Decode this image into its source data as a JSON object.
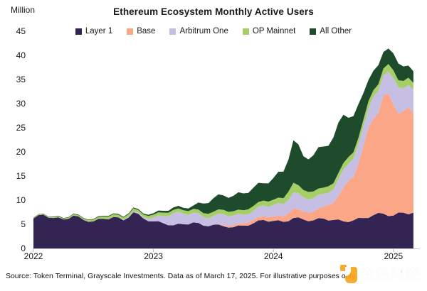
{
  "title": "Ethereum Ecosystem Monthly Active Users",
  "unit_label": "Million",
  "legend": [
    {
      "label": "Layer 1",
      "color": "#342453"
    },
    {
      "label": "Base",
      "color": "#FBA787"
    },
    {
      "label": "Arbitrum One",
      "color": "#C7BFE3"
    },
    {
      "label": "OP Mainnet",
      "color": "#A6CE67"
    },
    {
      "label": "All Other",
      "color": "#1E4B2B"
    }
  ],
  "source_note": "Source: Token Terminal, Grayscale Investments. Data as of March 17, 2025. For illustrative purposes only.",
  "watermark_text": "金色财经",
  "chart_data": {
    "type": "area",
    "stacked": true,
    "title": "Ethereum Ecosystem Monthly Active Users",
    "ylabel": "Million",
    "ylim": [
      0,
      45
    ],
    "y_ticks": [
      0,
      5,
      10,
      15,
      20,
      25,
      30,
      35,
      40,
      45
    ],
    "x_tick_labels": [
      "2022",
      "2023",
      "2024",
      "2025"
    ],
    "grid": false,
    "legend_position": "top",
    "x": [
      "2022-01",
      "2022-02",
      "2022-03",
      "2022-04",
      "2022-05",
      "2022-06",
      "2022-07",
      "2022-08",
      "2022-09",
      "2022-10",
      "2022-11",
      "2022-12",
      "2023-01",
      "2023-02",
      "2023-03",
      "2023-04",
      "2023-05",
      "2023-06",
      "2023-07",
      "2023-08",
      "2023-09",
      "2023-10",
      "2023-11",
      "2023-12",
      "2024-01",
      "2024-02",
      "2024-03",
      "2024-04",
      "2024-05",
      "2024-06",
      "2024-07",
      "2024-08",
      "2024-09",
      "2024-10",
      "2024-11",
      "2024-12",
      "2025-01",
      "2025-02",
      "2025-03"
    ],
    "series": [
      {
        "name": "Layer 1",
        "color": "#342453",
        "values": [
          6.2,
          7.0,
          6.3,
          6.0,
          6.8,
          5.9,
          5.6,
          6.1,
          6.5,
          5.8,
          7.5,
          6.2,
          5.6,
          5.2,
          4.8,
          5.0,
          5.4,
          4.7,
          4.9,
          4.6,
          4.4,
          4.7,
          5.2,
          5.9,
          5.7,
          5.5,
          6.3,
          6.0,
          5.8,
          6.2,
          5.9,
          5.6,
          5.8,
          6.3,
          6.9,
          7.2,
          6.8,
          7.4,
          7.4
        ]
      },
      {
        "name": "Base",
        "color": "#FBA787",
        "values": [
          0,
          0,
          0,
          0,
          0,
          0,
          0,
          0,
          0,
          0,
          0,
          0,
          0,
          0,
          0,
          0,
          0,
          0,
          0,
          0.2,
          0.4,
          0.5,
          0.7,
          0.8,
          0.9,
          1.1,
          2.0,
          1.6,
          1.8,
          2.5,
          3.5,
          7.0,
          9.0,
          15.0,
          20.0,
          24.5,
          23.0,
          21.0,
          20.5
        ]
      },
      {
        "name": "Arbitrum One",
        "color": "#C7BFE3",
        "values": [
          0,
          0,
          0,
          0,
          0,
          0,
          0,
          0,
          0,
          0.1,
          0.2,
          0.3,
          0.8,
          1.5,
          2.5,
          2.2,
          2.0,
          1.8,
          1.8,
          2.3,
          2.0,
          1.8,
          1.9,
          2.2,
          2.4,
          2.6,
          3.3,
          3.0,
          2.8,
          2.6,
          2.8,
          3.8,
          3.8,
          4.0,
          4.5,
          4.2,
          5.5,
          4.8,
          5.0
        ]
      },
      {
        "name": "OP Mainnet",
        "color": "#A6CE67",
        "values": [
          0.15,
          0.15,
          0.2,
          0.2,
          0.3,
          0.3,
          0.4,
          0.5,
          0.6,
          0.5,
          0.6,
          0.5,
          0.6,
          0.7,
          0.7,
          0.7,
          0.8,
          0.8,
          0.9,
          0.9,
          0.9,
          0.9,
          1.0,
          1.0,
          1.1,
          1.2,
          2.0,
          1.5,
          1.4,
          1.3,
          1.3,
          1.3,
          1.3,
          1.4,
          1.4,
          1.4,
          1.6,
          1.5,
          1.4
        ]
      },
      {
        "name": "All Other",
        "color": "#1E4B2B",
        "values": [
          0.05,
          0.05,
          0.1,
          0.1,
          0.1,
          0.1,
          0.1,
          0.15,
          0.15,
          0.15,
          0.2,
          0.2,
          0.3,
          0.4,
          0.5,
          0.5,
          0.7,
          2.0,
          2.8,
          3.0,
          3.2,
          3.5,
          3.8,
          3.6,
          4.5,
          5.5,
          8.8,
          7.0,
          7.5,
          8.5,
          9.5,
          10.0,
          7.5,
          5.5,
          4.0,
          3.4,
          3.5,
          3.0,
          2.4
        ]
      }
    ]
  }
}
